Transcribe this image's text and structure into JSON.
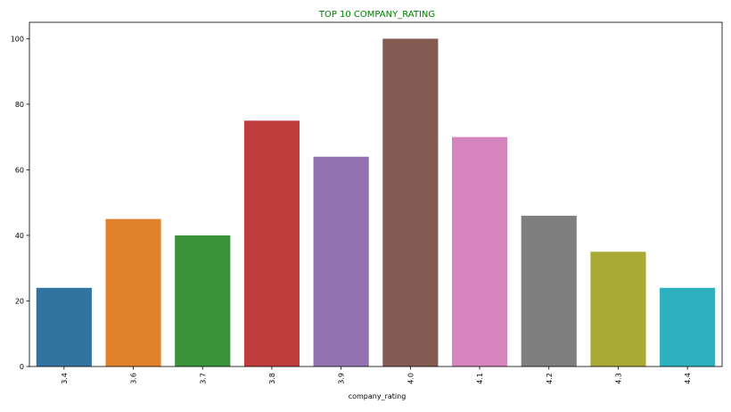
{
  "chart_data": {
    "type": "bar",
    "title": "TOP 10 COMPANY_RATING",
    "xlabel": "company_rating",
    "ylabel": "",
    "categories": [
      "3.4",
      "3.6",
      "3.7",
      "3.8",
      "3.9",
      "4.0",
      "4.1",
      "4.2",
      "4.3",
      "4.4"
    ],
    "values": [
      24,
      45,
      40,
      75,
      64,
      100,
      70,
      46,
      35,
      24
    ],
    "ylim": [
      0,
      105
    ],
    "yticks": [
      0,
      20,
      40,
      60,
      80,
      100
    ],
    "colors": [
      "#3274a1",
      "#e1812c",
      "#3a923a",
      "#c03d3e",
      "#9372b2",
      "#845b53",
      "#d684bd",
      "#7f7f7f",
      "#a9aa35",
      "#2eb1bf"
    ],
    "title_color": "#008000",
    "grid": false,
    "legend": "none"
  }
}
